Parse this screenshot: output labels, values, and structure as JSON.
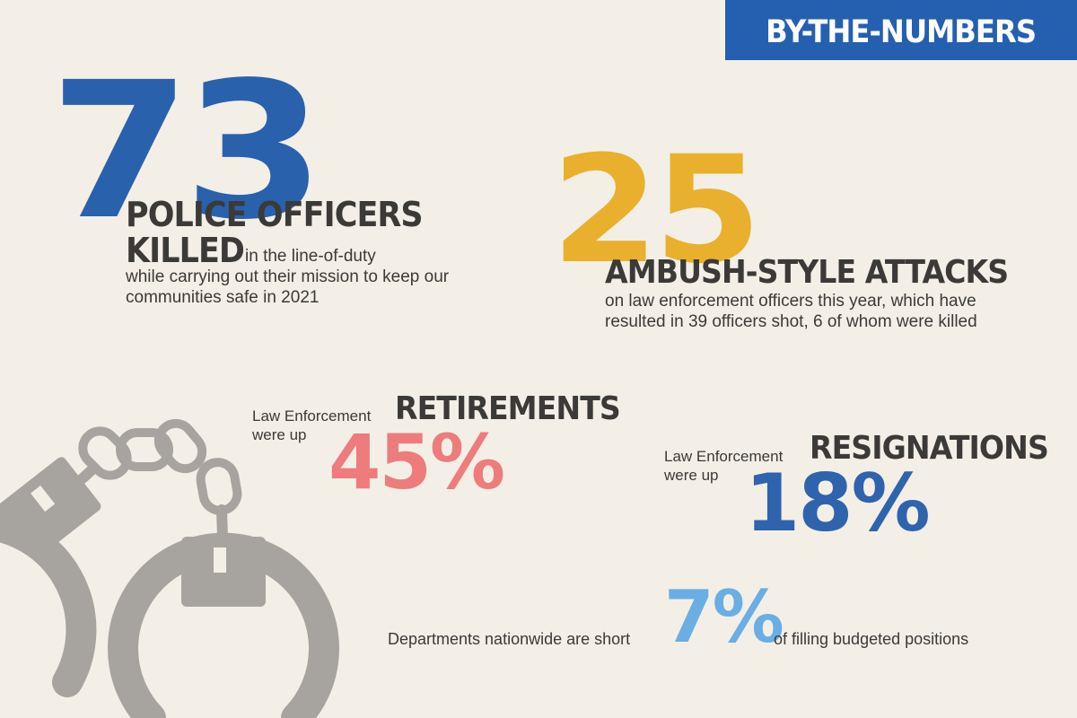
{
  "banner": {
    "label": "BY-THE-NUMBERS",
    "color": "#2560b0"
  },
  "police": {
    "number": "73",
    "heading_line1": "POLICE OFFICERS",
    "heading_line2": "KILLED",
    "text_inline": "in the line-of-duty",
    "text_rest": "while carrying out their mission to keep our communities safe in 2021",
    "number_color": "#2a61ad"
  },
  "ambush": {
    "number": "25",
    "heading": "AMBUSH-STYLE ATTACKS",
    "text": "on law enforcement officers this year, which have resulted in 39 officers shot, 6 of whom were killed",
    "number_color": "#e8b02c"
  },
  "retirements": {
    "prefix_line1": "Law Enforcement",
    "prefix_line2": "were up",
    "heading": "RETIREMENTS",
    "value": "45%",
    "color": "#ee7c7c"
  },
  "resignations": {
    "prefix_line1": "Law Enforcement",
    "prefix_line2": "were up",
    "heading": "RESIGNATIONS",
    "value": "18%",
    "color": "#2f63ad"
  },
  "departments": {
    "text_before": "Departments nationwide are short",
    "value": "7%",
    "text_after": "of filling budgeted positions",
    "color": "#6aaee4"
  },
  "illustration": {
    "icon": "handcuffs-icon",
    "color": "#a7a4a0"
  }
}
